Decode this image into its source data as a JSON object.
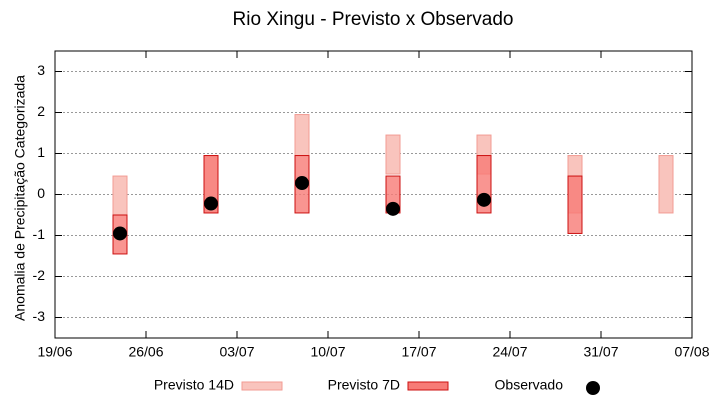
{
  "chart_data": {
    "type": "range-box",
    "title": "Rio Xingu - Previsto x Observado",
    "y_label": "Anomalia de Precipitação Categorizada",
    "x": [
      "24/06",
      "01/07",
      "08/07",
      "15/07",
      "22/07",
      "29/07",
      "05/08"
    ],
    "xlim": [
      "19/06",
      "07/08"
    ],
    "xticks": [
      "19/06",
      "26/06",
      "03/07",
      "10/07",
      "17/07",
      "24/07",
      "31/07",
      "07/08"
    ],
    "ylim": [
      -3.5,
      3.5
    ],
    "yticks": [
      -3,
      -2,
      -1,
      0,
      1,
      2,
      3
    ],
    "grid": true,
    "series": [
      {
        "name": "Previsto 14D",
        "color": "#f9c4bd",
        "edge": "#f29b93",
        "low": [
          -0.5,
          -0.45,
          0.95,
          0.5,
          0.5,
          -0.45,
          -0.45
        ],
        "high": [
          0.45,
          0.95,
          1.95,
          1.45,
          1.45,
          0.95,
          0.95
        ]
      },
      {
        "name": "Previsto 7D",
        "color": "#f77b76",
        "edge": "#cc1010",
        "low": [
          -1.45,
          -0.45,
          -0.45,
          -0.45,
          -0.45,
          -0.95,
          null
        ],
        "high": [
          -0.5,
          0.95,
          0.95,
          0.45,
          0.95,
          0.45,
          null
        ]
      },
      {
        "name": "Observado",
        "color": "#000000",
        "values": [
          -0.95,
          -0.22,
          0.28,
          -0.35,
          -0.13,
          null,
          null
        ]
      }
    ]
  }
}
